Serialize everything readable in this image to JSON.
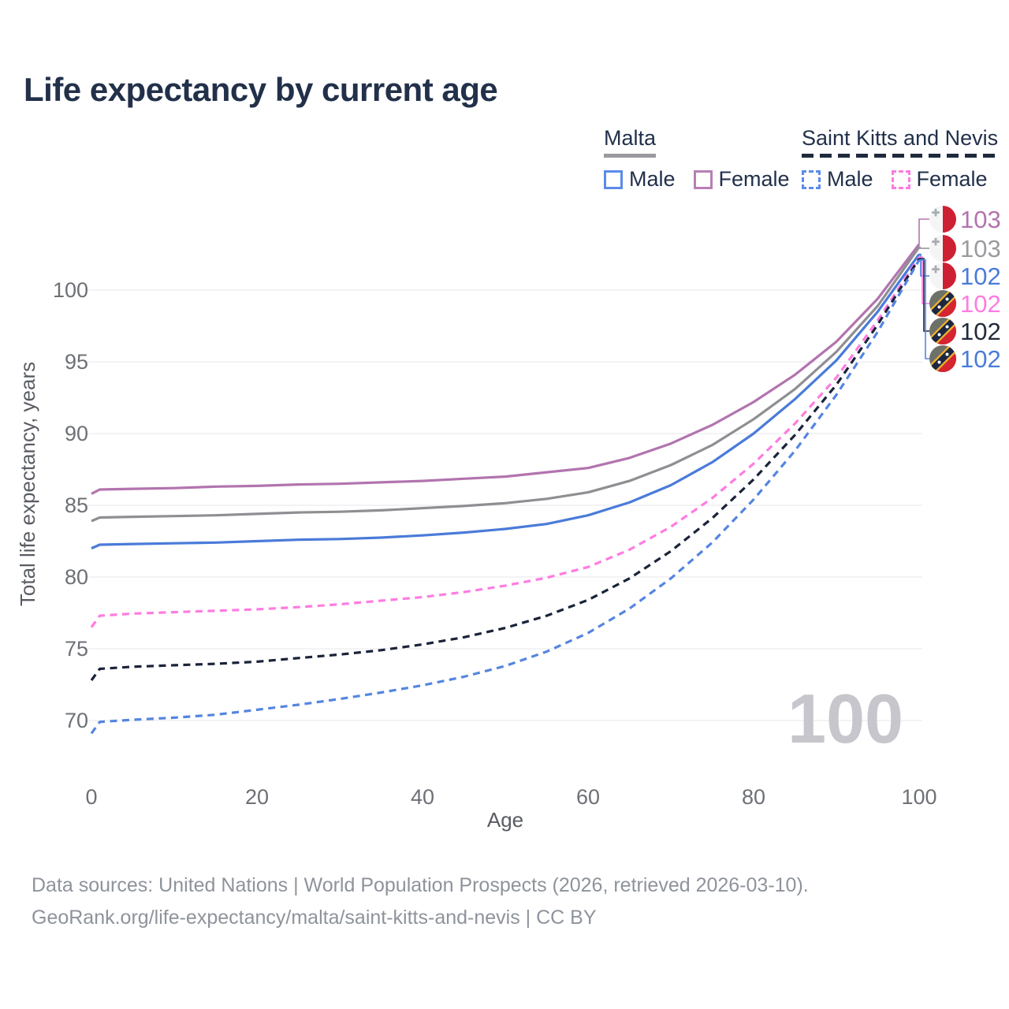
{
  "title": "Life expectancy by current age",
  "legend": {
    "groups": [
      {
        "name": "Malta",
        "line_style": "solid",
        "underline_color": "#9a9a9e",
        "items": [
          {
            "label": "Male",
            "color": "#5b8bea"
          },
          {
            "label": "Female",
            "color": "#b87fb4"
          }
        ]
      },
      {
        "name": "Saint Kitts and Nevis",
        "line_style": "dashed",
        "underline_color": "#1f2a3d",
        "items": [
          {
            "label": "Male",
            "color": "#5b8bea"
          },
          {
            "label": "Female",
            "color": "#fc7ae0"
          }
        ]
      }
    ]
  },
  "watermark": "100",
  "footer": {
    "line1": "Data sources: United Nations | World Population Prospects (2026, retrieved 2026-03-10).",
    "line2": "GeoRank.org/life-expectancy/malta/saint-kitts-and-nevis | CC BY"
  },
  "chart_data": {
    "type": "line",
    "title": "Life expectancy by current age",
    "xlabel": "Age",
    "ylabel": "Total life expectancy, years",
    "x_ticks": [
      0,
      20,
      40,
      60,
      80,
      100
    ],
    "y_ticks": [
      70,
      75,
      80,
      85,
      90,
      95,
      100
    ],
    "xlim": [
      0,
      100
    ],
    "ylim": [
      68,
      104
    ],
    "grid": "horizontal-only",
    "x": [
      0,
      1,
      5,
      10,
      15,
      20,
      25,
      30,
      35,
      40,
      45,
      50,
      55,
      60,
      65,
      70,
      75,
      80,
      85,
      90,
      95,
      100
    ],
    "series": [
      {
        "name": "Malta Female",
        "country": "Malta",
        "sex": "Female",
        "style": "solid",
        "color": "#b274ae",
        "end_label": "103",
        "end_label_color": "#b274ae",
        "flag": "malta",
        "values": [
          85.8,
          86.1,
          86.15,
          86.2,
          86.3,
          86.35,
          86.45,
          86.5,
          86.6,
          86.7,
          86.85,
          87.0,
          87.3,
          87.6,
          88.3,
          89.3,
          90.6,
          92.2,
          94.1,
          96.4,
          99.4,
          103.2
        ]
      },
      {
        "name": "Malta Both sexes",
        "country": "Malta",
        "sex": "Both",
        "style": "solid",
        "color": "#8f8f93",
        "end_label": "103",
        "end_label_color": "#9b9b9f",
        "flag": "malta",
        "values": [
          83.9,
          84.15,
          84.2,
          84.25,
          84.3,
          84.4,
          84.5,
          84.55,
          84.65,
          84.8,
          84.95,
          85.15,
          85.45,
          85.9,
          86.7,
          87.8,
          89.2,
          91.0,
          93.1,
          95.7,
          98.9,
          103.0
        ]
      },
      {
        "name": "Malta Male",
        "country": "Malta",
        "sex": "Male",
        "style": "solid",
        "color": "#4a7bd9",
        "end_label": "102",
        "end_label_color": "#4a7bd9",
        "flag": "malta",
        "values": [
          82.0,
          82.25,
          82.3,
          82.35,
          82.4,
          82.5,
          82.6,
          82.65,
          82.75,
          82.9,
          83.1,
          83.35,
          83.7,
          84.3,
          85.2,
          86.4,
          88.0,
          90.0,
          92.4,
          95.1,
          98.5,
          102.5
        ]
      },
      {
        "name": "Saint Kitts and Nevis Female",
        "country": "Saint Kitts and Nevis",
        "sex": "Female",
        "style": "dashed",
        "color": "#fe7ce1",
        "end_label": "102",
        "end_label_color": "#fe7ce1",
        "flag": "saint-kitts-and-nevis",
        "values": [
          76.5,
          77.3,
          77.45,
          77.55,
          77.65,
          77.75,
          77.9,
          78.1,
          78.35,
          78.6,
          78.95,
          79.4,
          79.95,
          80.7,
          81.9,
          83.5,
          85.5,
          87.9,
          90.7,
          93.9,
          97.9,
          102.3
        ]
      },
      {
        "name": "Saint Kitts and Nevis Both sexes",
        "country": "Saint Kitts and Nevis",
        "sex": "Both",
        "style": "dashed",
        "color": "#1a2339",
        "end_label": "102",
        "end_label_color": "#222b3a",
        "flag": "saint-kitts-and-nevis",
        "values": [
          72.8,
          73.6,
          73.75,
          73.85,
          73.95,
          74.1,
          74.35,
          74.6,
          74.9,
          75.3,
          75.8,
          76.45,
          77.3,
          78.4,
          79.9,
          81.8,
          84.1,
          86.8,
          89.9,
          93.4,
          97.6,
          102.2
        ]
      },
      {
        "name": "Saint Kitts and Nevis Male",
        "country": "Saint Kitts and Nevis",
        "sex": "Male",
        "style": "dashed",
        "color": "#5585e0",
        "end_label": "102",
        "end_label_color": "#4a7bd9",
        "flag": "saint-kitts-and-nevis",
        "values": [
          69.1,
          69.9,
          70.05,
          70.2,
          70.4,
          70.75,
          71.1,
          71.5,
          71.95,
          72.45,
          73.05,
          73.8,
          74.8,
          76.1,
          77.8,
          79.9,
          82.4,
          85.4,
          88.8,
          92.7,
          97.1,
          102.1
        ]
      }
    ]
  },
  "flag_colors": {
    "malta": {
      "white": "#f5f5f6",
      "red": "#ce2033",
      "cross": "#a8adb3"
    },
    "saint_kitts_and_nevis": {
      "field": "#6e7168",
      "red": "#d62430",
      "band": "#1d2742",
      "band_edge": "#f2b22d",
      "star": "#ffffff"
    }
  },
  "style_colors": {
    "title_text": "#22304a",
    "tick_text": "#6d7076",
    "axis_title_text": "#585c63",
    "gridline": "#ececef",
    "footer_text": "#8e939b",
    "watermark_text": "#c6c6cc"
  }
}
